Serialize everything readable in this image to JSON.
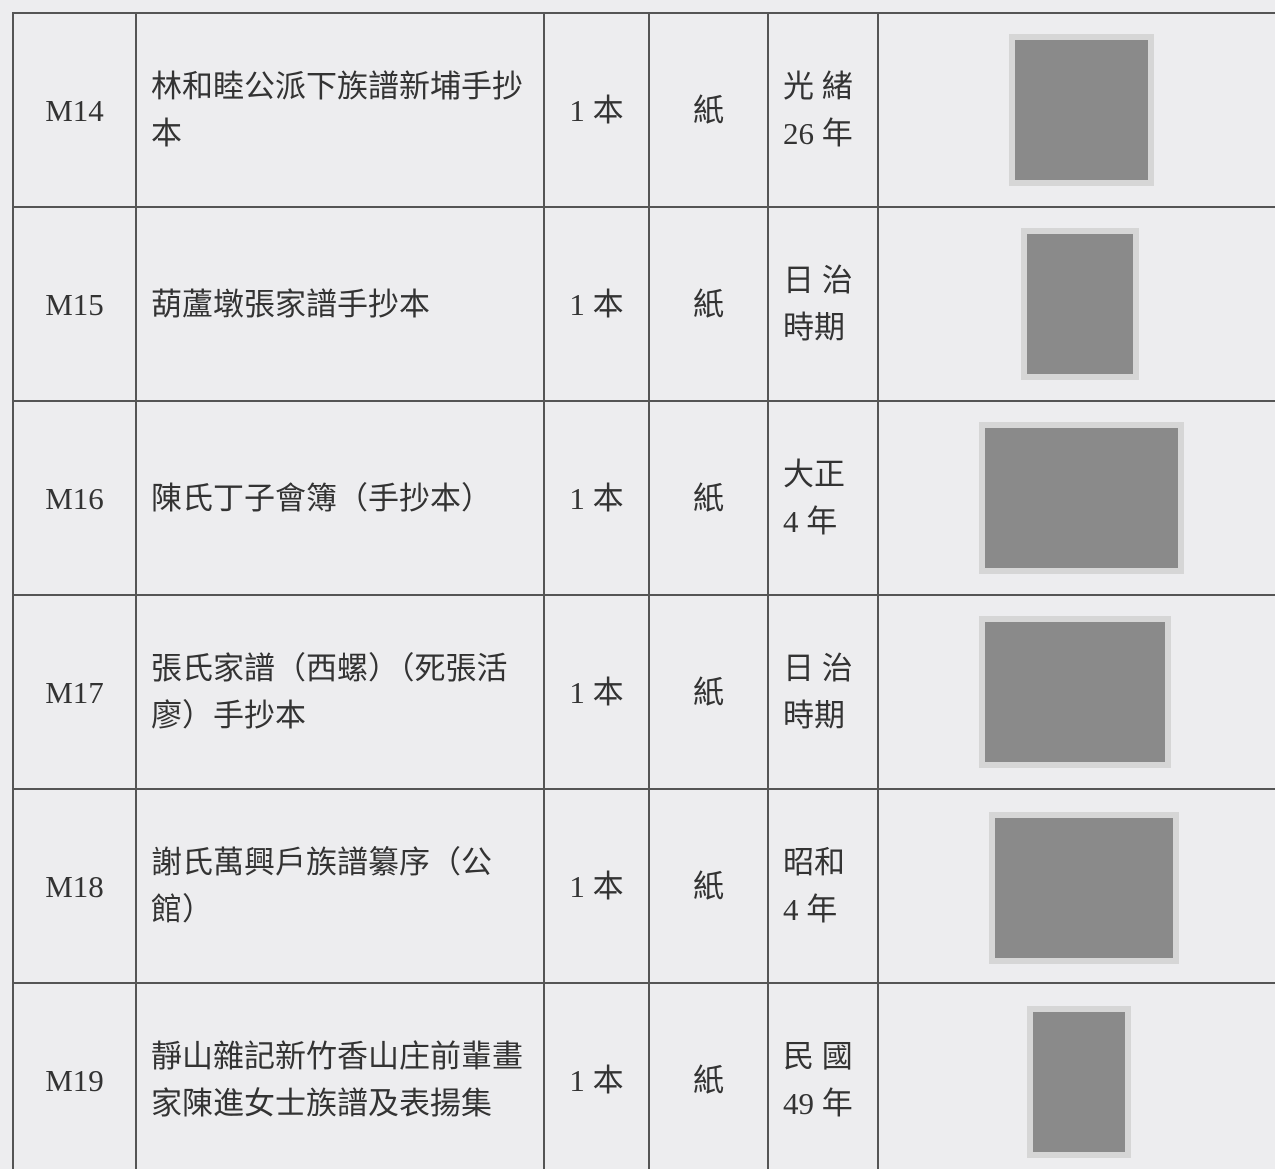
{
  "table": {
    "rows": [
      {
        "id": "M14",
        "title": "林和睦公派下族譜新埔手抄本",
        "quantity": "1 本",
        "material": "紙",
        "date": [
          "光 緒",
          "26 年"
        ]
      },
      {
        "id": "M15",
        "title": "葫蘆墩張家譜手抄本",
        "quantity": "1 本",
        "material": "紙",
        "date": [
          "日 治",
          "時期"
        ]
      },
      {
        "id": "M16",
        "title": "陳氏丁子會簿（手抄本）",
        "quantity": "1 本",
        "material": "紙",
        "date": [
          "大正",
          "4 年"
        ]
      },
      {
        "id": "M17",
        "title": "張氏家譜（西螺）（死張活廖）手抄本",
        "quantity": "1 本",
        "material": "紙",
        "date": [
          "日 治",
          "時期"
        ]
      },
      {
        "id": "M18",
        "title": "謝氏萬興戶族譜纂序（公館）",
        "quantity": "1 本",
        "material": "紙",
        "date": [
          "昭和",
          "4 年"
        ]
      },
      {
        "id": "M19",
        "title": "靜山雜記新竹香山庄前輩畫家陳進女士族譜及表揚集",
        "quantity": "1 本",
        "material": "紙",
        "date": [
          "民 國",
          "49 年"
        ]
      }
    ]
  }
}
